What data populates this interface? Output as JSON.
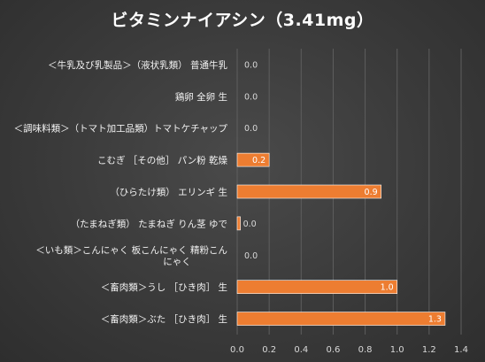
{
  "chart_data": {
    "type": "bar",
    "orientation": "horizontal",
    "title": "ビタミンナイアシン（3.41mg）",
    "categories": [
      "＜牛乳及び乳製品＞（液状乳類） 普通牛乳",
      "鶏卵 全卵 生",
      "＜調味料類＞（トマト加工品類）トマトケチャップ",
      "こむぎ ［その他］ パン粉 乾燥",
      "（ひらたけ類） エリンギ 生",
      "（たまねぎ類） たまねぎ りん茎 ゆで",
      "＜いも類＞こんにゃく 板こんにゃく 精粉こんにゃく",
      "＜畜肉類＞うし ［ひき肉］ 生",
      "＜畜肉類＞ぶた ［ひき肉］ 生"
    ],
    "category_lines": [
      [
        "＜牛乳及び乳製品＞（液状乳類） 普通牛乳"
      ],
      [
        "鶏卵 全卵 生"
      ],
      [
        "＜調味料類＞（トマト加工品類）トマトケチャップ"
      ],
      [
        "こむぎ ［その他］ パン粉 乾燥"
      ],
      [
        "（ひらたけ類） エリンギ 生"
      ],
      [
        "（たまねぎ類） たまねぎ りん茎 ゆで"
      ],
      [
        "＜いも類＞こんにゃく 板こんにゃく 精粉こん",
        "にゃく"
      ],
      [
        "＜畜肉類＞うし ［ひき肉］ 生"
      ],
      [
        "＜畜肉類＞ぶた ［ひき肉］ 生"
      ]
    ],
    "values": [
      0.0,
      0.0,
      0.0,
      0.2,
      0.9,
      0.02,
      0.0,
      1.0,
      1.3
    ],
    "value_labels": [
      "0.0",
      "0.0",
      "0.0",
      "0.2",
      "0.9",
      "0.0",
      "0.0",
      "1.0",
      "1.3"
    ],
    "xlim": [
      0,
      1.4
    ],
    "xticks": [
      "0.0",
      "0.2",
      "0.4",
      "0.6",
      "0.8",
      "1.0",
      "1.2",
      "1.4"
    ],
    "xlabel": "",
    "ylabel": "",
    "grid": true,
    "legend": "none",
    "colors": {
      "bar": "#ed7d31",
      "bar_edge": "#ffffff",
      "grid": "#5e5e5e",
      "label_inside": "#ffffff",
      "label_outside": "#d9d9d9"
    }
  }
}
